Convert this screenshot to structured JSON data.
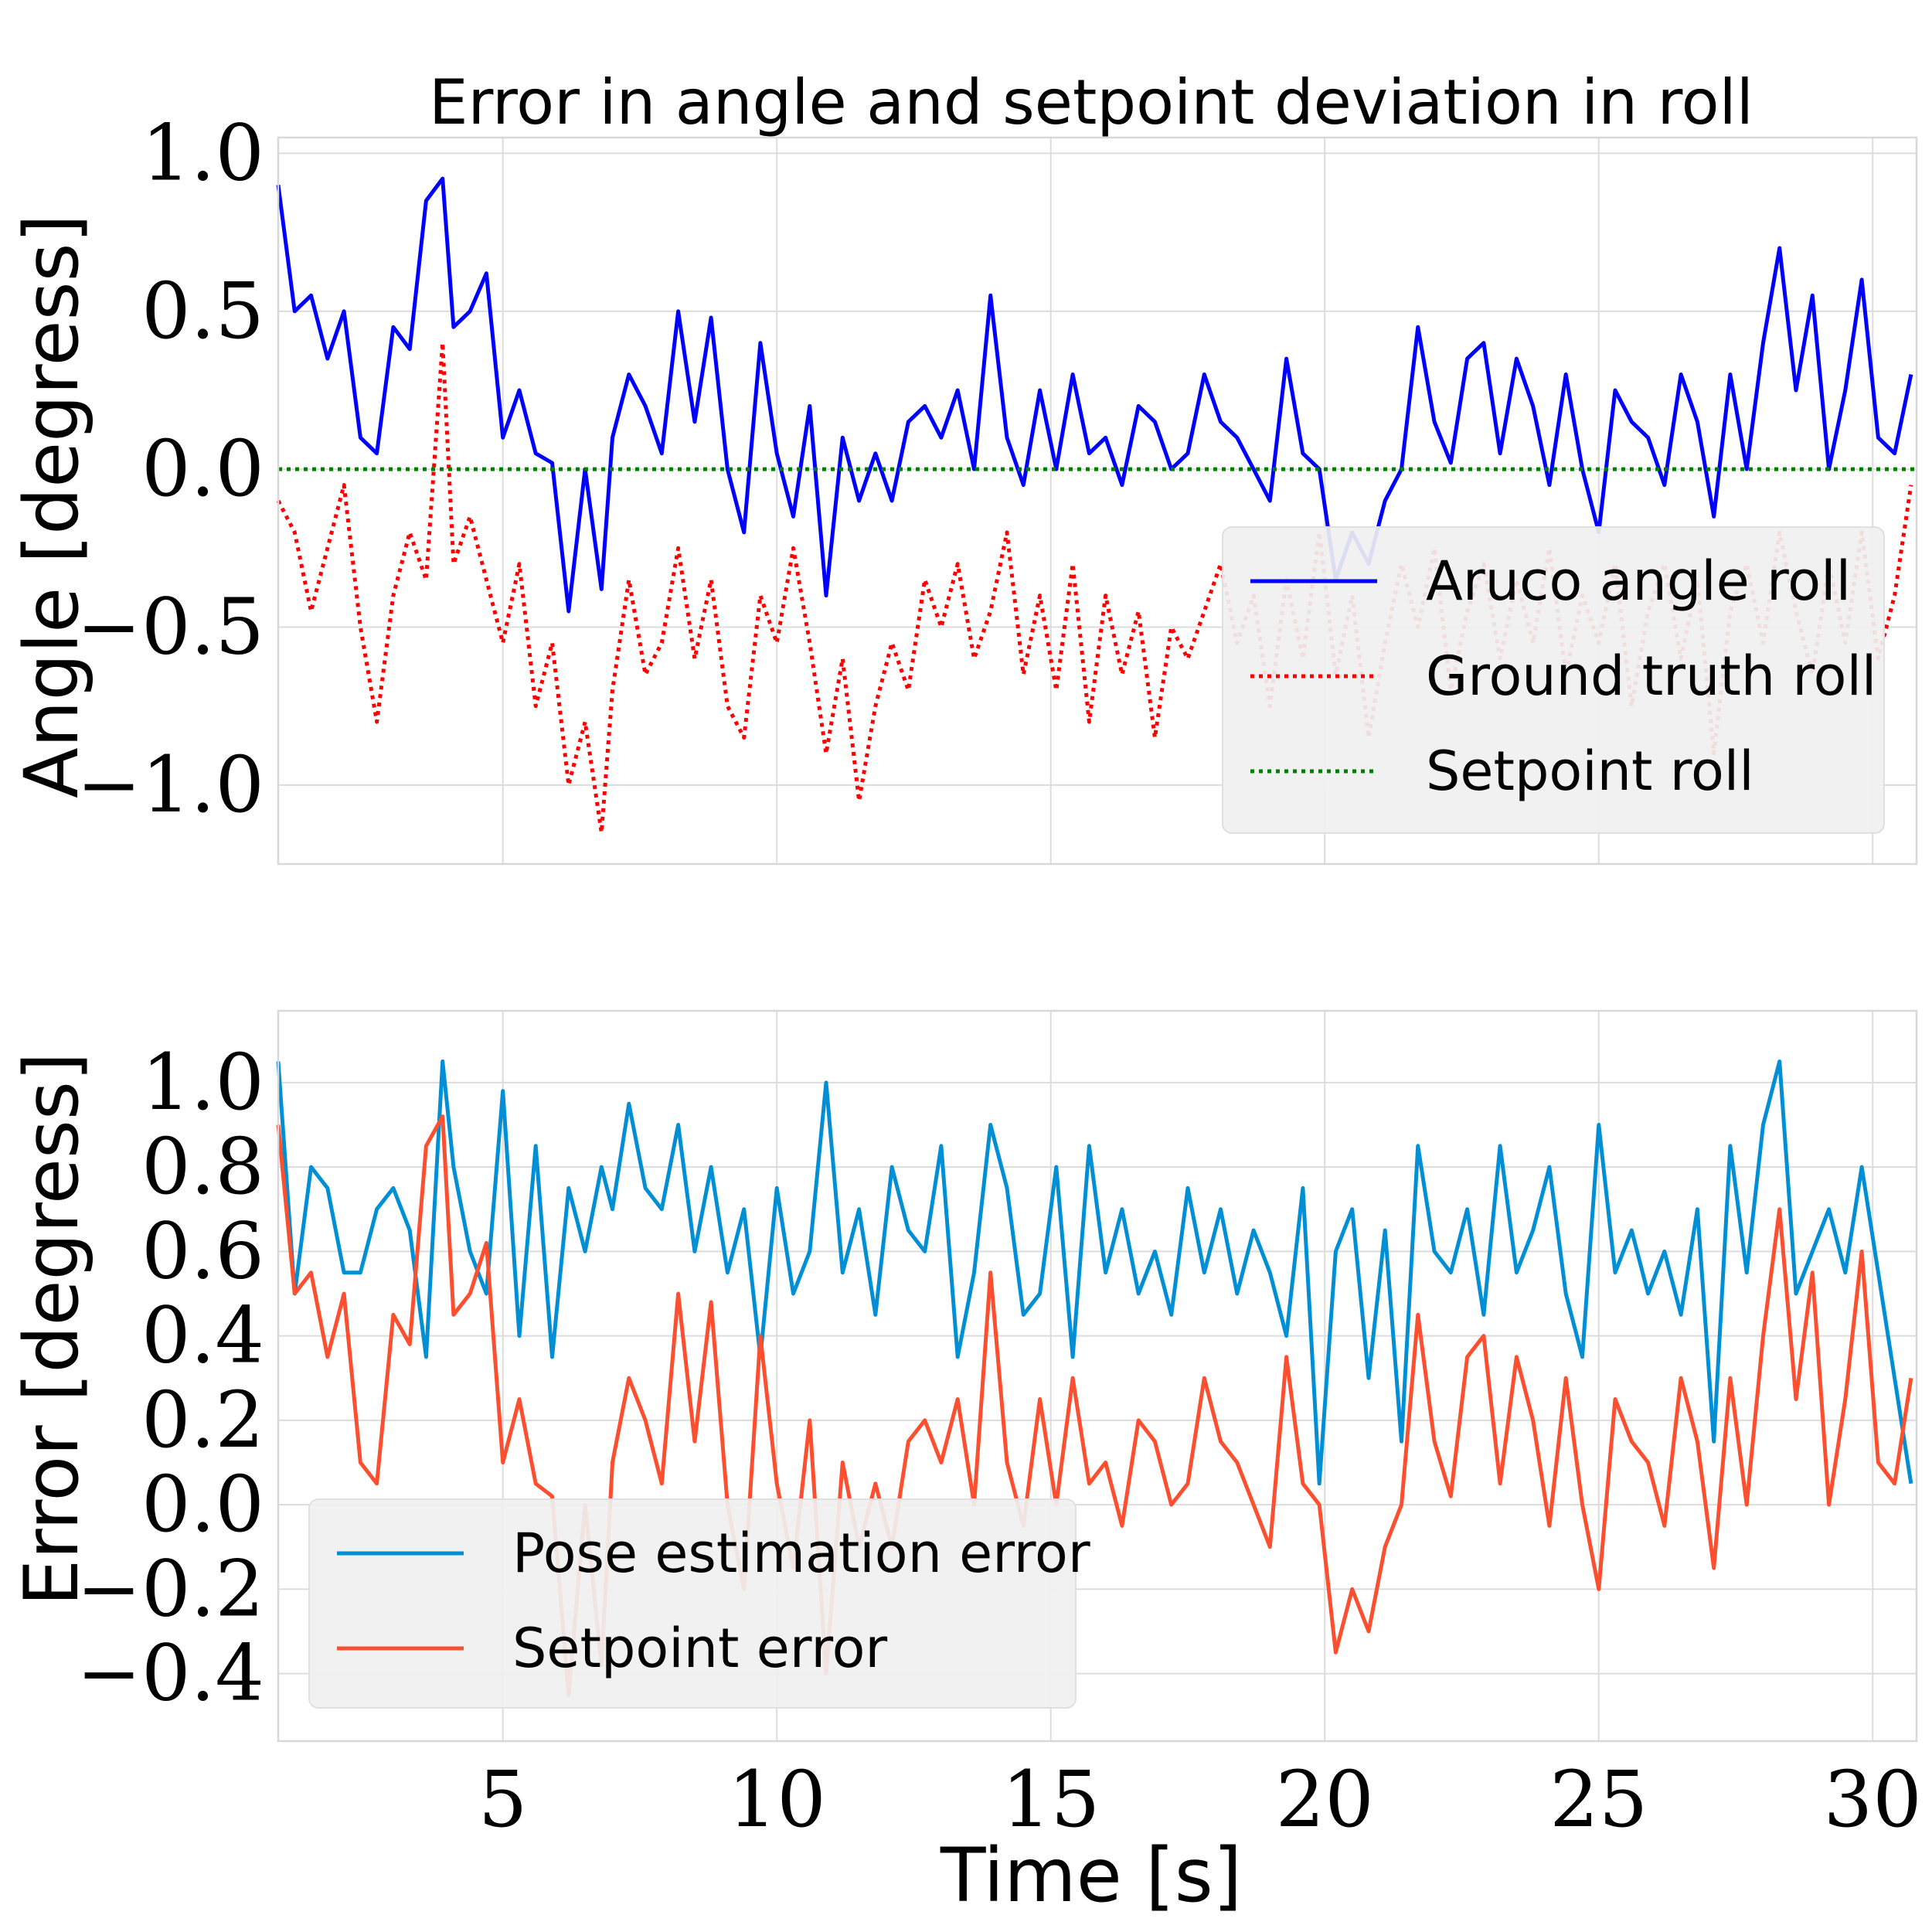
{
  "chart_data": [
    {
      "type": "line",
      "title": "Error in angle and setpoint deviation in roll",
      "xlabel": "",
      "ylabel": "Angle [degress]",
      "xlim": [
        0.9,
        30.8
      ],
      "ylim": [
        -1.25,
        1.05
      ],
      "xticks": [
        5,
        10,
        15,
        20,
        25,
        30
      ],
      "show_xtick_labels": false,
      "yticks": [
        -1.0,
        -0.5,
        0.0,
        0.5,
        1.0
      ],
      "ytick_labels": [
        "−1.0",
        "−0.5",
        "0.0",
        "0.5",
        "1.0"
      ],
      "grid": true,
      "legend_position": "lower-right",
      "series": [
        {
          "name": "Aruco angle roll",
          "color": "#0000ff",
          "style": "solid",
          "x": [
            0.9,
            1.2,
            1.5,
            1.8,
            2.1,
            2.4,
            2.7,
            3.0,
            3.3,
            3.6,
            3.9,
            4.1,
            4.4,
            4.7,
            5.0,
            5.3,
            5.6,
            5.9,
            6.2,
            6.5,
            6.8,
            7.0,
            7.3,
            7.6,
            7.9,
            8.2,
            8.5,
            8.8,
            9.1,
            9.4,
            9.7,
            10.0,
            10.3,
            10.6,
            10.9,
            11.2,
            11.5,
            11.8,
            12.1,
            12.4,
            12.7,
            13.0,
            13.3,
            13.6,
            13.9,
            14.2,
            14.5,
            14.8,
            15.1,
            15.4,
            15.7,
            16.0,
            16.3,
            16.6,
            16.9,
            17.2,
            17.5,
            17.8,
            18.1,
            18.4,
            18.7,
            19.0,
            19.3,
            19.6,
            19.9,
            20.2,
            20.5,
            20.8,
            21.1,
            21.4,
            21.7,
            22.0,
            22.3,
            22.6,
            22.9,
            23.2,
            23.5,
            23.8,
            24.1,
            24.4,
            24.7,
            25.0,
            25.3,
            25.6,
            25.9,
            26.2,
            26.5,
            26.8,
            27.1,
            27.4,
            27.7,
            28.0,
            28.3,
            28.6,
            28.9,
            29.2,
            29.5,
            29.8,
            30.1,
            30.4,
            30.7
          ],
          "y": [
            0.9,
            0.5,
            0.55,
            0.35,
            0.5,
            0.1,
            0.05,
            0.45,
            0.38,
            0.85,
            0.92,
            0.45,
            0.5,
            0.62,
            0.1,
            0.25,
            0.05,
            0.02,
            -0.45,
            0.0,
            -0.38,
            0.1,
            0.3,
            0.2,
            0.05,
            0.5,
            0.15,
            0.48,
            0.0,
            -0.2,
            0.4,
            0.05,
            -0.15,
            0.2,
            -0.4,
            0.1,
            -0.1,
            0.05,
            -0.1,
            0.15,
            0.2,
            0.1,
            0.25,
            0.0,
            0.55,
            0.1,
            -0.05,
            0.25,
            0.0,
            0.3,
            0.05,
            0.1,
            -0.05,
            0.2,
            0.15,
            0.0,
            0.05,
            0.3,
            0.15,
            0.1,
            0.0,
            -0.1,
            0.35,
            0.05,
            0.0,
            -0.35,
            -0.2,
            -0.3,
            -0.1,
            0.0,
            0.45,
            0.15,
            0.02,
            0.35,
            0.4,
            0.05,
            0.35,
            0.2,
            -0.05,
            0.3,
            0.0,
            -0.2,
            0.25,
            0.15,
            0.1,
            -0.05,
            0.3,
            0.15,
            -0.15,
            0.3,
            0.0,
            0.4,
            0.7,
            0.25,
            0.55,
            0.0,
            0.25,
            0.6,
            0.1,
            0.05,
            0.3
          ]
        },
        {
          "name": "Ground truth roll",
          "color": "#ff0000",
          "style": "dotted",
          "x": [
            0.9,
            1.2,
            1.5,
            1.8,
            2.1,
            2.4,
            2.7,
            3.0,
            3.3,
            3.6,
            3.9,
            4.1,
            4.4,
            4.7,
            5.0,
            5.3,
            5.6,
            5.9,
            6.2,
            6.5,
            6.8,
            7.0,
            7.3,
            7.6,
            7.9,
            8.2,
            8.5,
            8.8,
            9.1,
            9.4,
            9.7,
            10.0,
            10.3,
            10.6,
            10.9,
            11.2,
            11.5,
            11.8,
            12.1,
            12.4,
            12.7,
            13.0,
            13.3,
            13.6,
            13.9,
            14.2,
            14.5,
            14.8,
            15.1,
            15.4,
            15.7,
            16.0,
            16.3,
            16.6,
            16.9,
            17.2,
            17.5,
            17.8,
            18.1,
            18.4,
            18.7,
            19.0,
            19.3,
            19.6,
            19.9,
            20.2,
            20.5,
            20.8,
            21.1,
            21.4,
            21.7,
            22.0,
            22.3,
            22.6,
            22.9,
            23.2,
            23.5,
            23.8,
            24.1,
            24.4,
            24.7,
            25.0,
            25.3,
            25.6,
            25.9,
            26.2,
            26.5,
            26.8,
            27.1,
            27.4,
            27.7,
            28.0,
            28.3,
            28.6,
            28.9,
            29.2,
            29.5,
            29.8,
            30.1,
            30.4,
            30.7
          ],
          "y": [
            -0.1,
            -0.2,
            -0.45,
            -0.25,
            -0.05,
            -0.5,
            -0.8,
            -0.4,
            -0.2,
            -0.35,
            0.4,
            -0.3,
            -0.15,
            -0.35,
            -0.55,
            -0.3,
            -0.75,
            -0.55,
            -1.0,
            -0.8,
            -1.15,
            -0.7,
            -0.35,
            -0.65,
            -0.55,
            -0.25,
            -0.6,
            -0.35,
            -0.75,
            -0.85,
            -0.4,
            -0.55,
            -0.25,
            -0.55,
            -0.9,
            -0.6,
            -1.05,
            -0.75,
            -0.55,
            -0.7,
            -0.35,
            -0.5,
            -0.3,
            -0.6,
            -0.45,
            -0.2,
            -0.65,
            -0.4,
            -0.7,
            -0.3,
            -0.8,
            -0.4,
            -0.65,
            -0.45,
            -0.85,
            -0.5,
            -0.6,
            -0.45,
            -0.3,
            -0.55,
            -0.4,
            -0.75,
            -0.35,
            -0.6,
            -0.2,
            -0.65,
            -0.4,
            -0.85,
            -0.55,
            -0.3,
            -0.5,
            -0.25,
            -0.7,
            -0.45,
            -0.3,
            -0.6,
            -0.35,
            -0.55,
            -0.25,
            -0.65,
            -0.4,
            -0.55,
            -0.3,
            -0.75,
            -0.45,
            -0.3,
            -0.6,
            -0.35,
            -0.9,
            -0.45,
            -0.3,
            -0.55,
            -0.2,
            -0.45,
            -0.65,
            -0.3,
            -0.55,
            -0.2,
            -0.6,
            -0.4,
            -0.05
          ]
        },
        {
          "name": "Setpoint roll",
          "color": "#008000",
          "style": "dotted",
          "x": [
            0.9,
            30.8
          ],
          "y": [
            0.0,
            0.0
          ]
        }
      ]
    },
    {
      "type": "line",
      "title": "",
      "xlabel": "Time [s]",
      "ylabel": "Error [degress]",
      "xlim": [
        0.9,
        30.8
      ],
      "ylim": [
        -0.56,
        1.17
      ],
      "xticks": [
        5,
        10,
        15,
        20,
        25,
        30
      ],
      "xtick_labels": [
        "5",
        "10",
        "15",
        "20",
        "25",
        "30"
      ],
      "yticks": [
        -0.4,
        -0.2,
        0.0,
        0.2,
        0.4,
        0.6,
        0.8,
        1.0
      ],
      "ytick_labels": [
        "−0.4",
        "−0.2",
        "0.0",
        "0.2",
        "0.4",
        "0.6",
        "0.8",
        "1.0"
      ],
      "grid": true,
      "legend_position": "lower-left",
      "series": [
        {
          "name": "Pose estimation error",
          "color": "#008fd5",
          "style": "solid",
          "x": [
            0.9,
            1.2,
            1.5,
            1.8,
            2.1,
            2.4,
            2.7,
            3.0,
            3.3,
            3.6,
            3.9,
            4.1,
            4.4,
            4.7,
            5.0,
            5.3,
            5.6,
            5.9,
            6.2,
            6.5,
            6.8,
            7.0,
            7.3,
            7.6,
            7.9,
            8.2,
            8.5,
            8.8,
            9.1,
            9.4,
            9.7,
            10.0,
            10.3,
            10.6,
            10.9,
            11.2,
            11.5,
            11.8,
            12.1,
            12.4,
            12.7,
            13.0,
            13.3,
            13.6,
            13.9,
            14.2,
            14.5,
            14.8,
            15.1,
            15.4,
            15.7,
            16.0,
            16.3,
            16.6,
            16.9,
            17.2,
            17.5,
            17.8,
            18.1,
            18.4,
            18.7,
            19.0,
            19.3,
            19.6,
            19.9,
            20.2,
            20.5,
            20.8,
            21.1,
            21.4,
            21.7,
            22.0,
            22.3,
            22.6,
            22.9,
            23.2,
            23.5,
            23.8,
            24.1,
            24.4,
            24.7,
            25.0,
            25.3,
            25.6,
            25.9,
            26.2,
            26.5,
            26.8,
            27.1,
            27.4,
            27.7,
            28.0,
            28.3,
            28.6,
            28.9,
            29.2,
            29.5,
            29.8,
            30.1,
            30.4,
            30.7
          ],
          "y": [
            1.05,
            0.5,
            0.8,
            0.75,
            0.55,
            0.55,
            0.7,
            0.75,
            0.65,
            0.35,
            1.05,
            0.8,
            0.6,
            0.5,
            0.98,
            0.4,
            0.85,
            0.35,
            0.75,
            0.6,
            0.8,
            0.7,
            0.95,
            0.75,
            0.7,
            0.9,
            0.6,
            0.8,
            0.55,
            0.7,
            0.35,
            0.75,
            0.5,
            0.6,
            1.0,
            0.55,
            0.7,
            0.45,
            0.8,
            0.65,
            0.6,
            0.85,
            0.35,
            0.55,
            0.9,
            0.75,
            0.45,
            0.5,
            0.8,
            0.35,
            0.85,
            0.55,
            0.7,
            0.5,
            0.6,
            0.45,
            0.75,
            0.55,
            0.7,
            0.5,
            0.65,
            0.55,
            0.4,
            0.75,
            0.05,
            0.6,
            0.7,
            0.3,
            0.65,
            0.15,
            0.85,
            0.6,
            0.55,
            0.7,
            0.45,
            0.85,
            0.55,
            0.65,
            0.8,
            0.5,
            0.35,
            0.9,
            0.55,
            0.65,
            0.5,
            0.6,
            0.45,
            0.7,
            0.15,
            0.85,
            0.55,
            0.9,
            1.05,
            0.5,
            0.6,
            0.7,
            0.55,
            0.8,
            0.55,
            0.3,
            0.05
          ]
        },
        {
          "name": "Setpoint error",
          "color": "#fc4f30",
          "style": "solid",
          "x": [
            0.9,
            1.2,
            1.5,
            1.8,
            2.1,
            2.4,
            2.7,
            3.0,
            3.3,
            3.6,
            3.9,
            4.1,
            4.4,
            4.7,
            5.0,
            5.3,
            5.6,
            5.9,
            6.2,
            6.5,
            6.8,
            7.0,
            7.3,
            7.6,
            7.9,
            8.2,
            8.5,
            8.8,
            9.1,
            9.4,
            9.7,
            10.0,
            10.3,
            10.6,
            10.9,
            11.2,
            11.5,
            11.8,
            12.1,
            12.4,
            12.7,
            13.0,
            13.3,
            13.6,
            13.9,
            14.2,
            14.5,
            14.8,
            15.1,
            15.4,
            15.7,
            16.0,
            16.3,
            16.6,
            16.9,
            17.2,
            17.5,
            17.8,
            18.1,
            18.4,
            18.7,
            19.0,
            19.3,
            19.6,
            19.9,
            20.2,
            20.5,
            20.8,
            21.1,
            21.4,
            21.7,
            22.0,
            22.3,
            22.6,
            22.9,
            23.2,
            23.5,
            23.8,
            24.1,
            24.4,
            24.7,
            25.0,
            25.3,
            25.6,
            25.9,
            26.2,
            26.5,
            26.8,
            27.1,
            27.4,
            27.7,
            28.0,
            28.3,
            28.6,
            28.9,
            29.2,
            29.5,
            29.8,
            30.1,
            30.4,
            30.7
          ],
          "y": [
            0.9,
            0.5,
            0.55,
            0.35,
            0.5,
            0.1,
            0.05,
            0.45,
            0.38,
            0.85,
            0.92,
            0.45,
            0.5,
            0.62,
            0.1,
            0.25,
            0.05,
            0.02,
            -0.45,
            0.0,
            -0.38,
            0.1,
            0.3,
            0.2,
            0.05,
            0.5,
            0.15,
            0.48,
            0.0,
            -0.2,
            0.4,
            0.05,
            -0.15,
            0.2,
            -0.4,
            0.1,
            -0.1,
            0.05,
            -0.1,
            0.15,
            0.2,
            0.1,
            0.25,
            0.0,
            0.55,
            0.1,
            -0.05,
            0.25,
            0.0,
            0.3,
            0.05,
            0.1,
            -0.05,
            0.2,
            0.15,
            0.0,
            0.05,
            0.3,
            0.15,
            0.1,
            0.0,
            -0.1,
            0.35,
            0.05,
            0.0,
            -0.35,
            -0.2,
            -0.3,
            -0.1,
            0.0,
            0.45,
            0.15,
            0.02,
            0.35,
            0.4,
            0.05,
            0.35,
            0.2,
            -0.05,
            0.3,
            0.0,
            -0.2,
            0.25,
            0.15,
            0.1,
            -0.05,
            0.3,
            0.15,
            -0.15,
            0.3,
            0.0,
            0.4,
            0.7,
            0.25,
            0.55,
            0.0,
            0.25,
            0.6,
            0.1,
            0.05,
            0.3
          ]
        }
      ]
    }
  ]
}
